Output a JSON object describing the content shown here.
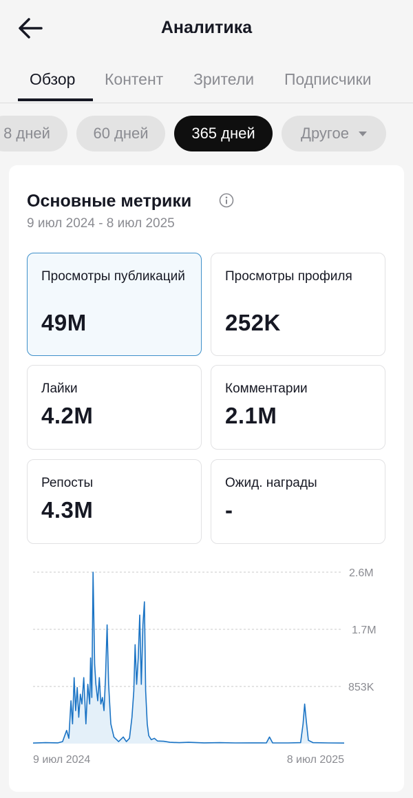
{
  "header": {
    "title": "Аналитика",
    "back_icon": "arrow-left-icon"
  },
  "tabs": [
    {
      "label": "Обзор",
      "active": true
    },
    {
      "label": "Контент",
      "active": false
    },
    {
      "label": "Зрители",
      "active": false
    },
    {
      "label": "Подписчики",
      "active": false
    }
  ],
  "periods": [
    {
      "label": "8 дней",
      "active": false
    },
    {
      "label": "60 дней",
      "active": false
    },
    {
      "label": "365 дней",
      "active": true
    },
    {
      "label": "Другое",
      "active": false,
      "dropdown": true
    }
  ],
  "metrics_card": {
    "title": "Основные метрики",
    "info_icon": "info-icon",
    "date_range": "9 июл 2024 - 8 июл 2025",
    "metrics": [
      {
        "label": "Просмотры публикаций",
        "value": "49M",
        "selected": true
      },
      {
        "label": "Просмотры профиля",
        "value": "252K",
        "selected": false
      },
      {
        "label": "Лайки",
        "value": "4.2M",
        "selected": false
      },
      {
        "label": "Комментарии",
        "value": "2.1M",
        "selected": false
      },
      {
        "label": "Репосты",
        "value": "4.3M",
        "selected": false
      },
      {
        "label": "Ожид. награды",
        "value": "-",
        "selected": false
      }
    ]
  },
  "colors": {
    "accent": "#1a73c4",
    "fill": "#e4f0f9",
    "selected_border": "#3d8fc9",
    "chip_active": "#0f0f0f"
  },
  "chart_data": {
    "type": "area",
    "x_start": "9 июл 2024",
    "x_end": "8 июл 2025",
    "xtick_labels": [
      "9 июл 2024",
      "8 июл 2025"
    ],
    "ytick_labels": [
      "853K",
      "1.7M",
      "2.6M"
    ],
    "ylim": [
      0,
      2600000
    ],
    "grid": "dashed horizontal",
    "peaks": [
      {
        "x": "июл 2024",
        "y": 1600000
      },
      {
        "x": "авг 2024",
        "y": 2600000
      },
      {
        "x": "авг 2024",
        "y": 1800000
      },
      {
        "x": "сен 2024",
        "y": 2150000
      },
      {
        "x": "сен 2024",
        "y": 1950000
      },
      {
        "x": "май 2025",
        "y": 600000
      }
    ]
  }
}
